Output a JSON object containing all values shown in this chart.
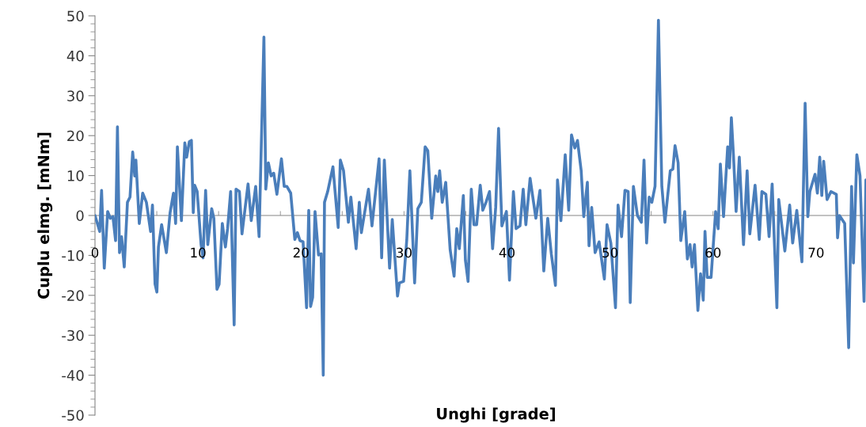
{
  "chart_data": {
    "type": "line",
    "xlabel": "Unghi [grade]",
    "ylabel": "Cuplu elmg. [mNm]",
    "xlim": [
      0,
      74.85
    ],
    "ylim": [
      -50,
      50
    ],
    "xticks": [
      0,
      10,
      20,
      30,
      40,
      50,
      60,
      70,
      {
        "value": 6,
        "label": null
      },
      {
        "value": 12,
        "label": null
      },
      {
        "value": 18,
        "label": null
      },
      {
        "value": 24,
        "label": null
      },
      {
        "value": 30,
        "label": null
      },
      {
        "value": 36,
        "label": null
      },
      {
        "value": 42,
        "label": null
      },
      {
        "value": 48,
        "label": null
      },
      {
        "value": 54,
        "label": null
      },
      {
        "value": 60,
        "label": null
      },
      {
        "value": 66,
        "label": null
      },
      {
        "value": 72,
        "label": null
      }
    ],
    "yticks": [
      -50,
      -40,
      -30,
      -20,
      -10,
      0,
      10,
      20,
      30,
      40,
      50,
      {
        "value": -48,
        "label": null
      },
      {
        "value": -46,
        "label": null
      },
      {
        "value": -44,
        "label": null
      },
      {
        "value": -42,
        "label": null
      },
      {
        "value": -38,
        "label": null
      },
      {
        "value": -36,
        "label": null
      },
      {
        "value": -34,
        "label": null
      },
      {
        "value": -32,
        "label": null
      },
      {
        "value": -28,
        "label": null
      },
      {
        "value": -26,
        "label": null
      },
      {
        "value": -24,
        "label": null
      },
      {
        "value": -22,
        "label": null
      },
      {
        "value": -18,
        "label": null
      },
      {
        "value": -16,
        "label": null
      },
      {
        "value": -14,
        "label": null
      },
      {
        "value": -12,
        "label": null
      },
      {
        "value": -8,
        "label": null
      },
      {
        "value": -6,
        "label": null
      },
      {
        "value": -4,
        "label": null
      },
      {
        "value": -2,
        "label": null
      },
      {
        "value": 2,
        "label": null
      },
      {
        "value": 4,
        "label": null
      },
      {
        "value": 6,
        "label": null
      },
      {
        "value": 8,
        "label": null
      },
      {
        "value": 12,
        "label": null
      },
      {
        "value": 14,
        "label": null
      },
      {
        "value": 16,
        "label": null
      },
      {
        "value": 18,
        "label": null
      },
      {
        "value": 22,
        "label": null
      },
      {
        "value": 24,
        "label": null
      },
      {
        "value": 26,
        "label": null
      },
      {
        "value": 28,
        "label": null
      },
      {
        "value": 32,
        "label": null
      },
      {
        "value": 34,
        "label": null
      },
      {
        "value": 36,
        "label": null
      },
      {
        "value": 38,
        "label": null
      },
      {
        "value": 42,
        "label": null
      },
      {
        "value": 44,
        "label": null
      },
      {
        "value": 46,
        "label": null
      },
      {
        "value": 48,
        "label": null
      }
    ],
    "marker": "none",
    "line_style": "solid",
    "series": [
      {
        "color": "#4a7ebb",
        "x": [
          0,
          0.46,
          0.64,
          0.9,
          1.23,
          1.49,
          1.74,
          2.0,
          2.18,
          2.38,
          2.58,
          2.84,
          3.15,
          3.4,
          3.66,
          3.86,
          3.97,
          4.3,
          4.63,
          4.99,
          5.4,
          5.58,
          5.83,
          6.01,
          6.16,
          6.47,
          6.93,
          7.29,
          7.62,
          7.83,
          8.0,
          8.39,
          8.72,
          8.9,
          9.16,
          9.36,
          9.54,
          9.67,
          9.92,
          10.3,
          10.49,
          10.74,
          10.95,
          11.33,
          11.54,
          11.84,
          12.05,
          12.36,
          12.66,
          12.87,
          13.17,
          13.51,
          13.69,
          14.02,
          14.27,
          14.86,
          15.17,
          15.6,
          15.93,
          16.4,
          16.58,
          16.83,
          17.1,
          17.35,
          17.66,
          18.1,
          18.37,
          18.62,
          19.0,
          19.4,
          19.65,
          19.9,
          20.2,
          20.54,
          20.75,
          20.93,
          21.13,
          21.36,
          21.7,
          21.95,
          22.16,
          22.28,
          22.59,
          23.1,
          23.61,
          23.82,
          24.13,
          24.6,
          24.84,
          25.35,
          25.66,
          25.86,
          26.55,
          26.89,
          27.58,
          27.83,
          28.09,
          28.6,
          28.86,
          29.37,
          29.55,
          29.96,
          30.27,
          30.57,
          31.03,
          31.34,
          31.68,
          32.05,
          32.31,
          32.69,
          33.08,
          33.28,
          33.46,
          33.71,
          34.05,
          34.48,
          34.86,
          35.12,
          35.37,
          35.76,
          35.96,
          36.22,
          36.53,
          36.79,
          37.05,
          37.4,
          37.65,
          37.96,
          38.3,
          38.6,
          38.9,
          39.18,
          39.5,
          39.94,
          40.24,
          40.62,
          40.88,
          41.26,
          41.57,
          41.83,
          42.24,
          42.8,
          43.2,
          43.57,
          43.95,
          44.3,
          44.7,
          44.9,
          45.23,
          45.65,
          45.99,
          46.26,
          46.58,
          46.84,
          47.2,
          47.45,
          47.8,
          47.96,
          48.22,
          48.55,
          48.94,
          49.45,
          49.71,
          50.08,
          50.53,
          50.78,
          51.12,
          51.45,
          51.76,
          51.96,
          52.27,
          52.66,
          53.04,
          53.3,
          53.55,
          53.8,
          54.06,
          54.37,
          54.7,
          55.03,
          55.33,
          55.85,
          56.1,
          56.31,
          56.61,
          56.87,
          57.25,
          57.51,
          57.77,
          57.97,
          58.2,
          58.53,
          58.79,
          59.05,
          59.22,
          59.43,
          59.81,
          60.25,
          60.5,
          60.71,
          61.02,
          61.42,
          61.6,
          61.78,
          61.98,
          62.24,
          62.55,
          62.96,
          63.31,
          63.57,
          64.08,
          64.49,
          64.74,
          65.13,
          65.44,
          65.74,
          66.2,
          66.38,
          66.97,
          67.44,
          67.73,
          68.13,
          68.63,
          68.94,
          69.2,
          69.4,
          69.9,
          70.13,
          70.36,
          70.56,
          70.74,
          71.07,
          71.45,
          71.97,
          72.09,
          72.27,
          72.78,
          73.17,
          73.45,
          73.63,
          73.96,
          74.27,
          74.66,
          74.84
        ],
        "values": [
          0,
          -4,
          6.3,
          -13.2,
          1,
          -0.7,
          -0.3,
          -6.3,
          22.2,
          -9.3,
          -5.3,
          -12.9,
          3.3,
          4.6,
          15.9,
          9.9,
          13.9,
          -2,
          5.6,
          3.3,
          -4,
          2.6,
          -17.2,
          -19.2,
          -7.9,
          -2.3,
          -9.3,
          0.7,
          5.6,
          -2,
          17.2,
          -1.3,
          18.2,
          14.6,
          18.5,
          18.8,
          0.7,
          7.6,
          6,
          -7.3,
          -10.6,
          6.3,
          -7.3,
          1.7,
          -0.7,
          -18.5,
          -17.2,
          -2,
          -7.9,
          -3.3,
          6,
          -27.4,
          6.6,
          6,
          -4.6,
          7.9,
          -1.3,
          7.3,
          -5.3,
          44.7,
          6.6,
          13.2,
          9.9,
          10.6,
          5.3,
          14.2,
          7.3,
          7.3,
          5.6,
          -6,
          -4.3,
          -6.3,
          -6.6,
          -23.1,
          1.3,
          -22.8,
          -20.5,
          1,
          -9.9,
          -9.6,
          -40,
          3.3,
          6,
          12.2,
          -3,
          13.9,
          11.2,
          -1.7,
          4.6,
          -8.3,
          3.3,
          -4.3,
          6.6,
          -2.6,
          14.2,
          -10.6,
          13.9,
          -13.2,
          -1,
          -20.2,
          -16.9,
          -16.5,
          -6,
          11.2,
          -16.9,
          1.7,
          3.3,
          17.2,
          16.2,
          -0.7,
          9.9,
          6,
          11.2,
          3.3,
          8.3,
          -8.6,
          -15.2,
          -3.3,
          -8.3,
          5,
          -11.2,
          -16.5,
          6.6,
          -2.3,
          -2.3,
          7.6,
          1.3,
          3.3,
          6,
          -8.3,
          2,
          21.8,
          -2.6,
          1,
          -16.2,
          6,
          -3.3,
          -2.6,
          6.6,
          -2.3,
          9.3,
          -0.7,
          6.3,
          -13.9,
          -0.7,
          -9.6,
          -17.5,
          8.9,
          -1.3,
          15.2,
          1.3,
          20.2,
          16.9,
          18.8,
          11.2,
          -0.3,
          8.3,
          -7.6,
          2,
          -9.3,
          -6.6,
          -15.9,
          -2.3,
          -6.9,
          -23.1,
          2.6,
          -5.3,
          6.3,
          6,
          -21.8,
          7.3,
          0,
          -1.7,
          13.9,
          -6.9,
          4.6,
          3.3,
          7.3,
          48.9,
          7.3,
          -1.7,
          11.2,
          11.6,
          17.5,
          13.2,
          -6.3,
          1,
          -10.9,
          -7.3,
          -12.9,
          -7.3,
          -23.8,
          -14.6,
          -21.2,
          -4,
          -15.5,
          -15.5,
          1,
          -3.3,
          12.9,
          -0.3,
          17.2,
          11.9,
          24.5,
          15.2,
          1,
          14.6,
          -7.3,
          11.2,
          -4.6,
          7.6,
          -6,
          6,
          5.3,
          -5.3,
          7.9,
          -23.1,
          4,
          -8.9,
          2.6,
          -6.9,
          1.3,
          -11.6,
          28.1,
          -0.3,
          6,
          10.3,
          5.6,
          14.6,
          5,
          13.6,
          4,
          6,
          5.3,
          -5.6,
          0,
          -2,
          -33.1,
          7.3,
          -11.9,
          15.2,
          9.9,
          -21.5,
          8.9
        ]
      }
    ]
  }
}
